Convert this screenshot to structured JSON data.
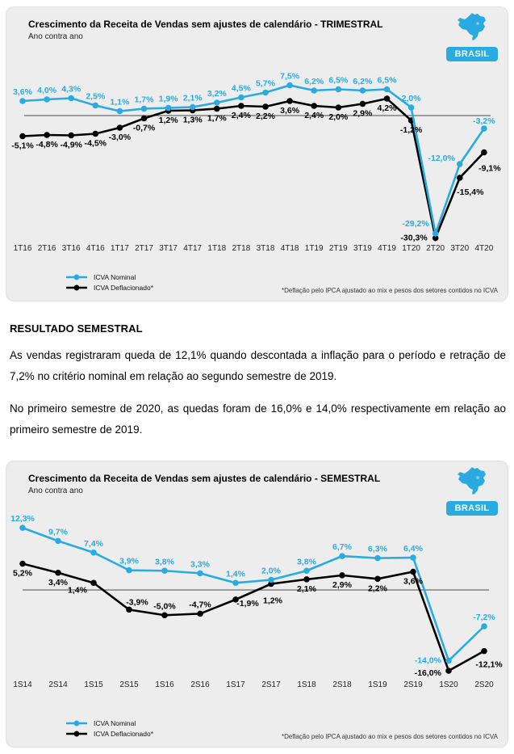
{
  "page": {
    "section_heading": "RESULTADO SEMESTRAL",
    "paragraphs": [
      "As vendas registraram queda de 12,1% quando descontada a inflação para o período e retração de 7,2% no critério  nominal em relação ao segundo semestre de 2019.",
      "No primeiro semestre de 2020, as quedas foram de 16,0% e 14,0% respectivamente em relação ao primeiro semestre de 2019."
    ]
  },
  "colors": {
    "accent_blue": "#29ABE2",
    "line_black": "#000000",
    "card_bg": "#EDEDED"
  },
  "chart_data": [
    {
      "type": "line",
      "title": "Crescimento da Receita de Vendas sem ajustes de calendário - TRIMESTRAL",
      "subtitle": "Ano contra ano",
      "badge": "BRASIL",
      "grid": false,
      "legend_position": "bottom-left",
      "ylim": [
        -32,
        9
      ],
      "categories": [
        "1T16",
        "2T16",
        "3T16",
        "4T16",
        "1T17",
        "2T17",
        "3T17",
        "4T17",
        "1T18",
        "2T18",
        "3T18",
        "4T18",
        "1T19",
        "2T19",
        "3T19",
        "4T19",
        "1T20",
        "2T20",
        "3T20",
        "4T20"
      ],
      "series": [
        {
          "name": "ICVA Nominal",
          "color": "#29ABE2",
          "values": [
            3.6,
            4.0,
            4.3,
            2.5,
            1.1,
            1.7,
            1.9,
            2.1,
            3.2,
            4.5,
            5.7,
            7.5,
            6.2,
            6.5,
            6.2,
            6.5,
            2.0,
            -29.2,
            -12.0,
            -3.2
          ]
        },
        {
          "name": "ICVA Deflacionado*",
          "color": "#000000",
          "values": [
            -5.1,
            -4.8,
            -4.9,
            -4.5,
            -3.0,
            -0.7,
            1.2,
            1.3,
            1.7,
            2.4,
            2.2,
            3.6,
            2.4,
            2.0,
            2.9,
            4.2,
            -1.2,
            -30.3,
            -15.4,
            -9.1
          ]
        }
      ],
      "footnote": "*Deflação pelo IPCA ajustado ao mix e pesos dos setores contidos no ICVA"
    },
    {
      "type": "line",
      "title": "Crescimento da Receita de Vendas sem ajustes de calendário - SEMESTRAL",
      "subtitle": "Ano contra ano",
      "badge": "BRASIL",
      "grid": false,
      "legend_position": "bottom-left",
      "ylim": [
        -18,
        14
      ],
      "categories": [
        "1S14",
        "2S14",
        "1S15",
        "2S15",
        "1S16",
        "2S16",
        "1S17",
        "2S17",
        "1S18",
        "2S18",
        "1S19",
        "2S19",
        "1S20",
        "2S20"
      ],
      "series": [
        {
          "name": "ICVA Nominal",
          "color": "#29ABE2",
          "values": [
            12.3,
            9.7,
            7.4,
            3.9,
            3.8,
            3.3,
            1.4,
            2.0,
            3.8,
            6.7,
            6.3,
            6.4,
            -14.0,
            -7.2
          ]
        },
        {
          "name": "ICVA Deflacionado*",
          "color": "#000000",
          "values": [
            5.2,
            3.4,
            1.4,
            -3.9,
            -5.0,
            -4.7,
            -1.9,
            1.2,
            2.1,
            2.9,
            2.2,
            3.6,
            -16.0,
            -12.1
          ]
        }
      ],
      "footnote": "*Deflação pelo IPCA ajustado ao mix e pesos dos setores contidos no ICVA"
    }
  ]
}
